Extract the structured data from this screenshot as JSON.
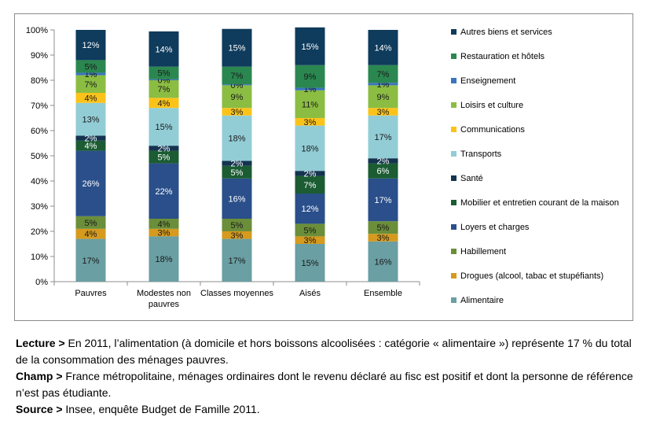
{
  "chart_data": {
    "type": "bar",
    "stacked": true,
    "categories": [
      "Pauvres",
      "Modestes non pauvres",
      "Classes moyennes",
      "Aisés",
      "Ensemble"
    ],
    "ylim": [
      0,
      100
    ],
    "yticks": [
      "0%",
      "10%",
      "20%",
      "30%",
      "40%",
      "50%",
      "60%",
      "70%",
      "80%",
      "90%",
      "100%"
    ],
    "legend_position": "right",
    "grid": false,
    "series": [
      {
        "name": "Alimentaire",
        "color": "#6a9fa3",
        "values": [
          17,
          18,
          17,
          15,
          16
        ],
        "labels": [
          "17%",
          "18%",
          "17%",
          "15%",
          "16%"
        ]
      },
      {
        "name": "Drogues (alcool, tabac et stupéfiants)",
        "color": "#d59a1e",
        "values": [
          4,
          3,
          3,
          3,
          3
        ],
        "labels": [
          "4%",
          "3%",
          "3%",
          "3%",
          "3%"
        ]
      },
      {
        "name": "Habillement",
        "color": "#6b8e3a",
        "values": [
          5,
          4,
          5,
          5,
          5
        ],
        "labels": [
          "5%",
          "4%",
          "5%",
          "5%",
          "5%"
        ]
      },
      {
        "name": "Loyers et charges",
        "color": "#2a4f8a",
        "values": [
          26,
          22,
          16,
          12,
          17
        ],
        "labels": [
          "26%",
          "22%",
          "16%",
          "12%",
          "17%"
        ]
      },
      {
        "name": "Mobilier et entretien courant de la maison",
        "color": "#1b5c33",
        "values": [
          4,
          5,
          5,
          7,
          6
        ],
        "labels": [
          "4%",
          "5%",
          "5%",
          "7%",
          "6%"
        ]
      },
      {
        "name": "Santé",
        "color": "#13334f",
        "values": [
          2,
          2,
          2,
          2,
          2
        ],
        "labels": [
          "2%",
          "2%",
          "2%",
          "2%",
          "2%"
        ]
      },
      {
        "name": "Transports",
        "color": "#92cdd6",
        "values": [
          13,
          15,
          18,
          18,
          17
        ],
        "labels": [
          "13%",
          "15%",
          "18%",
          "18%",
          "17%"
        ]
      },
      {
        "name": "Communications",
        "color": "#fbc31a",
        "values": [
          4,
          4,
          3,
          3,
          3
        ],
        "labels": [
          "4%",
          "4%",
          "3%",
          "3%",
          "3%"
        ]
      },
      {
        "name": "Loisirs et culture",
        "color": "#8bbd42",
        "values": [
          7,
          7,
          9,
          11,
          9
        ],
        "labels": [
          "7%",
          "7%",
          "9%",
          "11%",
          "9%"
        ]
      },
      {
        "name": "Enseignement",
        "color": "#3a74bd",
        "values": [
          1,
          0.4,
          0.4,
          1,
          1
        ],
        "labels": [
          "1%",
          "0%",
          "0%",
          "1%",
          "1%"
        ]
      },
      {
        "name": "Restauration et hôtels",
        "color": "#2a8750",
        "values": [
          5,
          5,
          7,
          9,
          7
        ],
        "labels": [
          "5%",
          "5%",
          "7%",
          "9%",
          "7%"
        ]
      },
      {
        "name": "Autres biens et services",
        "color": "#0f3b5c",
        "values": [
          12,
          14,
          15,
          15,
          14
        ],
        "labels": [
          "12%",
          "14%",
          "15%",
          "15%",
          "14%"
        ]
      }
    ]
  },
  "notes": {
    "lecture_label": "Lecture >",
    "lecture_text": "En 2011, l’alimentation (à domicile et hors boissons alcoolisées : catégorie « alimentaire ») représente 17 % du total de la consommation des ménages pauvres.",
    "champ_label": "Champ >",
    "champ_text": "France métropolitaine, ménages ordinaires dont le revenu déclaré au fisc est positif et dont la personne de référence n’est pas étudiante.",
    "source_label": "Source >",
    "source_text": "Insee, enquête Budget de Famille 2011."
  }
}
